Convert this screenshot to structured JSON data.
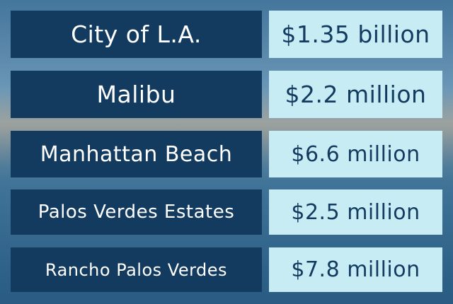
{
  "table": {
    "rows": [
      [
        "City of L.A.",
        "$1.35 billion"
      ],
      [
        "Malibu",
        "$2.2 million"
      ],
      [
        "Manhattan Beach",
        "$6.6 million"
      ],
      [
        "Palos Verdes Estates",
        "$2.5 million"
      ],
      [
        "Rancho Palos Verdes",
        "$7.8 million"
      ]
    ]
  }
}
